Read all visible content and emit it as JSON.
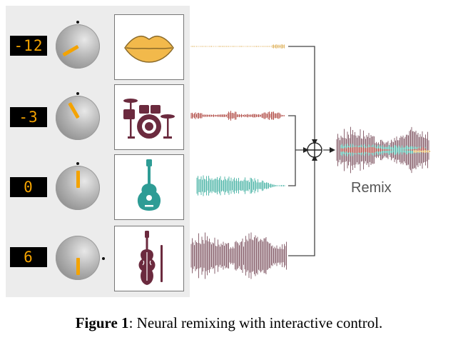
{
  "tracks": [
    {
      "instrument": "vocals",
      "icon": "lips-icon",
      "gain": "-12",
      "knob_level_db": -12,
      "color": "#e2b86a"
    },
    {
      "instrument": "drums",
      "icon": "drum-kit-icon",
      "gain": "-3",
      "knob_level_db": -3,
      "color": "#b5554f"
    },
    {
      "instrument": "guitar",
      "icon": "guitar-icon",
      "gain": "0",
      "knob_level_db": 0,
      "color": "#55b8ab"
    },
    {
      "instrument": "strings",
      "icon": "violin-icon",
      "gain": "6",
      "knob_level_db": 6,
      "color": "#8b6470"
    }
  ],
  "mixer": {
    "symbol": "⊕"
  },
  "remix": {
    "label": "Remix"
  },
  "caption": {
    "label": "Figure 1",
    "text": ": Neural remixing with interactive control."
  },
  "colors": {
    "accent": "#f4a300",
    "icon_maroon": "#6b2a3e",
    "icon_teal": "#2e9c95",
    "icon_gold": "#f2b94b"
  }
}
